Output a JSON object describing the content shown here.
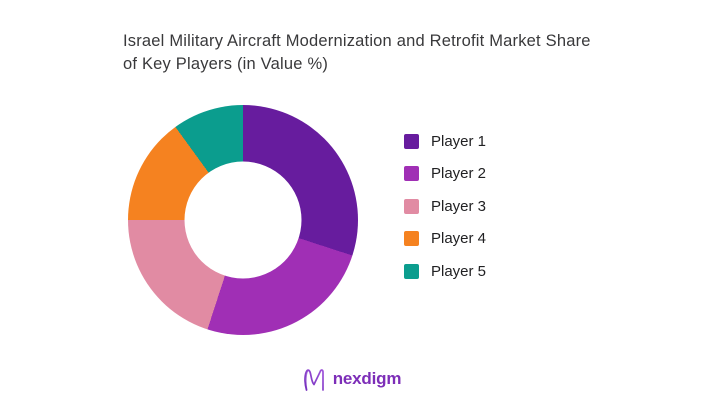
{
  "page": {
    "background": "#ffffff"
  },
  "chart_data": {
    "type": "pie",
    "donut": true,
    "title": "Israel Military Aircraft Modernization and Retrofit Market Share of Key Players (in Value %)",
    "labels": [
      "Player 1",
      "Player 2",
      "Player 3",
      "Player 4",
      "Player 5"
    ],
    "values": [
      30,
      25,
      20,
      15,
      10
    ],
    "unit": "percent of market value",
    "colors": [
      "#671c9e",
      "#a02fb5",
      "#e18ba3",
      "#f58220",
      "#0b9d8e"
    ],
    "start_angle_deg": 0,
    "direction": "clockwise",
    "inner_radius_ratio": 0.51,
    "legend_position": "right",
    "data_labels_shown": false
  },
  "footer": {
    "logo_text": "nexdigm",
    "logo_color": "#7d2eb8"
  }
}
